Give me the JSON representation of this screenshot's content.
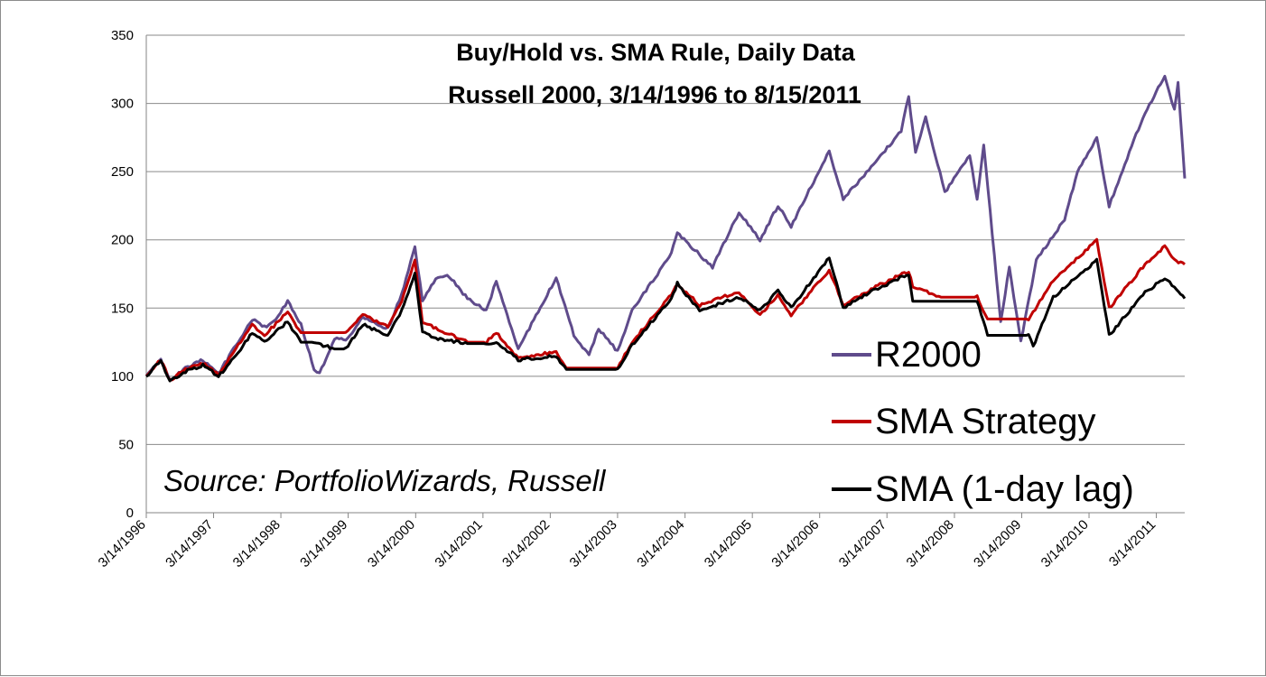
{
  "chart_data": {
    "type": "line",
    "title": "Buy/Hold vs. SMA Rule, Daily Data",
    "subtitle": "Russell 2000, 3/14/1996 to 8/15/2011",
    "xlabel": "",
    "ylabel": "",
    "ylim": [
      0,
      350
    ],
    "yticks": [
      "0",
      "50",
      "100",
      "150",
      "200",
      "250",
      "300",
      "350"
    ],
    "xlim": [
      "1996-03-14",
      "2011-08-15"
    ],
    "x_tick_labels": [
      "3/14/1996",
      "3/14/1997",
      "3/14/1998",
      "3/14/1999",
      "3/14/2000",
      "3/14/2001",
      "3/14/2002",
      "3/14/2003",
      "3/14/2004",
      "3/14/2005",
      "3/14/2006",
      "3/14/2007",
      "3/14/2008",
      "3/14/2009",
      "3/14/2010",
      "3/14/2011"
    ],
    "grid": "horizontal",
    "legend_position": "bottom-right",
    "annotation": "Source: PortfolioWizards, Russell",
    "series": [
      {
        "name": "R2000",
        "color": "#5f4b8b",
        "points": [
          [
            "1996-03-14",
            100
          ],
          [
            "1996-06-01",
            112
          ],
          [
            "1996-07-20",
            97
          ],
          [
            "1996-10-01",
            105
          ],
          [
            "1997-01-15",
            112
          ],
          [
            "1997-04-10",
            102
          ],
          [
            "1997-07-01",
            120
          ],
          [
            "1997-10-10",
            142
          ],
          [
            "1997-12-15",
            136
          ],
          [
            "1998-02-01",
            140
          ],
          [
            "1998-04-20",
            155
          ],
          [
            "1998-07-01",
            138
          ],
          [
            "1998-09-10",
            105
          ],
          [
            "1998-10-10",
            102
          ],
          [
            "1998-12-30",
            128
          ],
          [
            "1999-03-01",
            126
          ],
          [
            "1999-06-01",
            143
          ],
          [
            "1999-10-15",
            135
          ],
          [
            "1999-12-30",
            160
          ],
          [
            "2000-03-10",
            195
          ],
          [
            "2000-04-20",
            155
          ],
          [
            "2000-07-01",
            172
          ],
          [
            "2000-09-01",
            175
          ],
          [
            "2000-12-20",
            157
          ],
          [
            "2001-04-01",
            148
          ],
          [
            "2001-05-25",
            170
          ],
          [
            "2001-09-21",
            120
          ],
          [
            "2002-04-15",
            172
          ],
          [
            "2002-07-20",
            130
          ],
          [
            "2002-10-10",
            115
          ],
          [
            "2002-12-01",
            135
          ],
          [
            "2003-03-14",
            118
          ],
          [
            "2003-06-01",
            148
          ],
          [
            "2003-12-31",
            190
          ],
          [
            "2004-02-01",
            205
          ],
          [
            "2004-08-10",
            180
          ],
          [
            "2004-12-31",
            220
          ],
          [
            "2005-04-25",
            200
          ],
          [
            "2005-07-31",
            225
          ],
          [
            "2005-10-10",
            210
          ],
          [
            "2006-05-05",
            265
          ],
          [
            "2006-07-20",
            230
          ],
          [
            "2006-12-31",
            255
          ],
          [
            "2007-05-30",
            280
          ],
          [
            "2007-07-10",
            305
          ],
          [
            "2007-08-16",
            265
          ],
          [
            "2007-10-10",
            290
          ],
          [
            "2008-01-22",
            235
          ],
          [
            "2008-06-05",
            262
          ],
          [
            "2008-07-15",
            230
          ],
          [
            "2008-08-20",
            270
          ],
          [
            "2008-11-20",
            140
          ],
          [
            "2009-01-06",
            180
          ],
          [
            "2009-03-09",
            125
          ],
          [
            "2009-06-01",
            185
          ],
          [
            "2009-11-01",
            215
          ],
          [
            "2010-01-10",
            250
          ],
          [
            "2010-04-25",
            275
          ],
          [
            "2010-07-01",
            225
          ],
          [
            "2010-12-31",
            290
          ],
          [
            "2011-04-29",
            320
          ],
          [
            "2011-06-20",
            295
          ],
          [
            "2011-07-10",
            315
          ],
          [
            "2011-08-15",
            245
          ]
        ]
      },
      {
        "name": "SMA Strategy",
        "color": "#c00000",
        "points": [
          [
            "1996-03-14",
            100
          ],
          [
            "1996-06-01",
            112
          ],
          [
            "1996-07-20",
            97
          ],
          [
            "1996-10-01",
            104
          ],
          [
            "1997-01-15",
            110
          ],
          [
            "1997-04-10",
            101
          ],
          [
            "1997-07-01",
            118
          ],
          [
            "1997-10-10",
            138
          ],
          [
            "1997-12-15",
            130
          ],
          [
            "1998-04-20",
            147
          ],
          [
            "1998-07-01",
            132
          ],
          [
            "1998-09-10",
            132
          ],
          [
            "1998-12-30",
            132
          ],
          [
            "1999-03-01",
            132
          ],
          [
            "1999-06-01",
            145
          ],
          [
            "1999-10-15",
            136
          ],
          [
            "1999-12-30",
            155
          ],
          [
            "2000-03-10",
            185
          ],
          [
            "2000-04-20",
            140
          ],
          [
            "2000-07-01",
            135
          ],
          [
            "2000-12-20",
            125
          ],
          [
            "2001-04-01",
            125
          ],
          [
            "2001-05-25",
            132
          ],
          [
            "2001-09-21",
            113
          ],
          [
            "2002-04-15",
            118
          ],
          [
            "2002-06-10",
            106
          ],
          [
            "2003-03-14",
            106
          ],
          [
            "2003-06-01",
            125
          ],
          [
            "2003-12-31",
            160
          ],
          [
            "2004-02-01",
            168
          ],
          [
            "2004-06-01",
            152
          ],
          [
            "2004-12-31",
            162
          ],
          [
            "2005-04-25",
            145
          ],
          [
            "2005-07-31",
            160
          ],
          [
            "2005-10-10",
            145
          ],
          [
            "2006-05-05",
            178
          ],
          [
            "2006-07-20",
            152
          ],
          [
            "2006-12-31",
            165
          ],
          [
            "2007-07-10",
            177
          ],
          [
            "2007-08-01",
            166
          ],
          [
            "2008-01-01",
            158
          ],
          [
            "2008-07-15",
            158
          ],
          [
            "2008-09-10",
            142
          ],
          [
            "2009-04-20",
            142
          ],
          [
            "2009-09-01",
            170
          ],
          [
            "2010-04-25",
            200
          ],
          [
            "2010-07-01",
            150
          ],
          [
            "2010-12-31",
            180
          ],
          [
            "2011-04-29",
            195
          ],
          [
            "2011-06-20",
            185
          ],
          [
            "2011-08-15",
            182
          ]
        ]
      },
      {
        "name": "SMA (1-day lag)",
        "color": "#000000",
        "points": [
          [
            "1996-03-14",
            100
          ],
          [
            "1996-06-01",
            112
          ],
          [
            "1996-07-20",
            96
          ],
          [
            "1996-10-01",
            103
          ],
          [
            "1997-01-15",
            108
          ],
          [
            "1997-04-10",
            100
          ],
          [
            "1997-07-01",
            113
          ],
          [
            "1997-10-10",
            132
          ],
          [
            "1997-12-15",
            125
          ],
          [
            "1998-04-20",
            140
          ],
          [
            "1998-07-01",
            125
          ],
          [
            "1998-09-10",
            125
          ],
          [
            "1998-12-30",
            120
          ],
          [
            "1999-03-01",
            120
          ],
          [
            "1999-06-01",
            138
          ],
          [
            "1999-10-15",
            130
          ],
          [
            "1999-12-30",
            148
          ],
          [
            "2000-03-10",
            175
          ],
          [
            "2000-04-20",
            132
          ],
          [
            "2000-07-01",
            128
          ],
          [
            "2000-12-20",
            124
          ],
          [
            "2001-04-01",
            124
          ],
          [
            "2001-05-25",
            125
          ],
          [
            "2001-09-21",
            112
          ],
          [
            "2002-04-15",
            115
          ],
          [
            "2002-06-10",
            105
          ],
          [
            "2003-03-14",
            105
          ],
          [
            "2003-06-01",
            123
          ],
          [
            "2003-12-31",
            157
          ],
          [
            "2004-02-01",
            168
          ],
          [
            "2004-06-01",
            148
          ],
          [
            "2004-12-31",
            158
          ],
          [
            "2005-04-25",
            148
          ],
          [
            "2005-07-31",
            163
          ],
          [
            "2005-10-10",
            150
          ],
          [
            "2006-05-05",
            187
          ],
          [
            "2006-07-20",
            150
          ],
          [
            "2006-12-31",
            163
          ],
          [
            "2007-07-10",
            175
          ],
          [
            "2007-08-01",
            155
          ],
          [
            "2008-07-15",
            155
          ],
          [
            "2008-09-10",
            130
          ],
          [
            "2009-04-20",
            130
          ],
          [
            "2009-05-15",
            122
          ],
          [
            "2009-09-01",
            158
          ],
          [
            "2010-04-25",
            185
          ],
          [
            "2010-07-01",
            130
          ],
          [
            "2010-12-31",
            160
          ],
          [
            "2011-04-29",
            172
          ],
          [
            "2011-06-20",
            165
          ],
          [
            "2011-08-15",
            157
          ]
        ]
      }
    ]
  }
}
